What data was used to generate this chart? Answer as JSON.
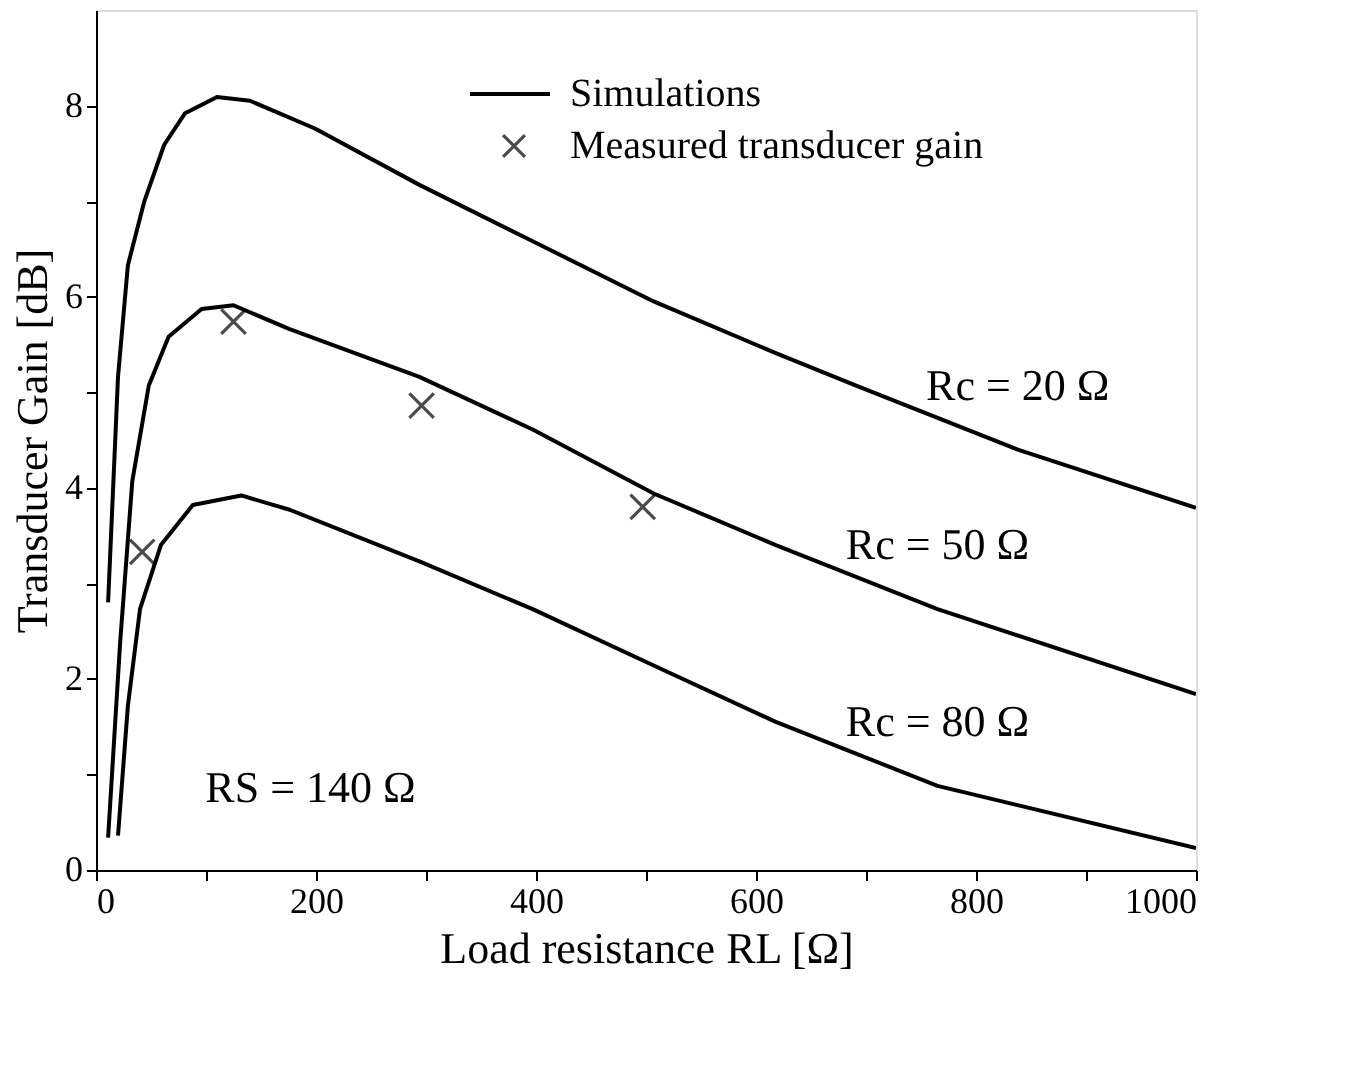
{
  "chart_data": {
    "type": "line",
    "xlabel": "Load resistance RL [Ω]",
    "ylabel": "Transducer Gain [dB]",
    "xlim": [
      0,
      1000
    ],
    "ylim": [
      0,
      9
    ],
    "xticks": [
      0,
      {
        "value": 100,
        "label": null
      },
      200,
      {
        "value": 300,
        "label": null
      },
      400,
      {
        "value": 500,
        "label": null
      },
      600,
      {
        "value": 700,
        "label": null
      },
      800,
      {
        "value": 900,
        "label": null
      },
      1000
    ],
    "yticks": [
      0,
      {
        "value": 1,
        "label": null
      },
      2,
      {
        "value": 3,
        "label": null
      },
      4,
      {
        "value": 5,
        "label": null
      },
      6,
      {
        "value": 7,
        "label": null
      },
      8
    ],
    "grid": false,
    "legend": "top",
    "line_style": "solid",
    "series": [
      {
        "name": "Simulations",
        "color": "#000000",
        "x": [
          11,
          20,
          29,
          44,
          62,
          81,
          110,
          140,
          199,
          294,
          397,
          507,
          618,
          691,
          838,
          1000
        ],
        "values": [
          2.8,
          5.16,
          6.33,
          7.0,
          7.59,
          7.92,
          8.09,
          8.05,
          7.76,
          7.17,
          6.58,
          5.95,
          5.41,
          5.07,
          4.4,
          3.79
        ]
      },
      {
        "color": "#000000",
        "x": [
          11,
          22,
          33,
          48,
          66,
          96,
          125,
          176,
          294,
          397,
          507,
          618,
          765,
          1000
        ],
        "values": [
          0.34,
          2.39,
          4.07,
          5.07,
          5.58,
          5.87,
          5.91,
          5.66,
          5.16,
          4.61,
          3.94,
          3.4,
          2.73,
          1.84
        ]
      },
      {
        "color": "#000000",
        "x": [
          20,
          29,
          40,
          59,
          88,
          132,
          176,
          294,
          397,
          507,
          618,
          765,
          1000
        ],
        "values": [
          0.36,
          1.72,
          2.73,
          3.4,
          3.82,
          3.92,
          3.77,
          3.23,
          2.73,
          2.14,
          1.55,
          0.88,
          0.23
        ]
      },
      {
        "name": "Measured transducer gain",
        "type": "scatter",
        "marker": "cross",
        "color": "#000000",
        "x": [
          42,
          125,
          296,
          497
        ],
        "values": [
          3.33,
          5.74,
          4.86,
          3.8
        ]
      }
    ],
    "annotations": [
      "Rc = 20 Ω",
      "Rc = 50 Ω",
      "Rc = 80 Ω",
      "RS = 140 Ω"
    ]
  }
}
